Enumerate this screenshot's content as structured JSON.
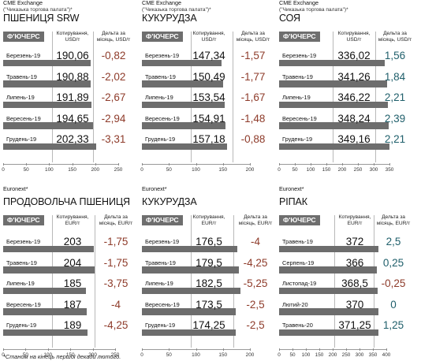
{
  "footnote": "*Станом на кінець першої декади лютого.",
  "labels": {
    "tag": "Ф'ЮЧЕРС"
  },
  "colors": {
    "bar": "#6d6d6d",
    "tag_bg": "#6e6e6e",
    "negative": "#8e3b2a",
    "positive": "#1f5f6b"
  },
  "panels": [
    {
      "exchange": "CME Exchange",
      "exchange_sub": "(\"Чиказька торгова палата\")*",
      "name": "ПШЕНИЦЯ SRW",
      "col_quote": [
        "Котирування,",
        "USD/т"
      ],
      "col_delta": [
        "Дельта за",
        "місяць, USD/т"
      ],
      "axis_max": 250,
      "ticks": [
        0,
        50,
        100,
        150,
        200,
        250
      ],
      "rows": [
        {
          "label": "Березень-19",
          "quote": "190,06",
          "delta": "-0,82",
          "q": 190.06,
          "d": -0.82
        },
        {
          "label": "Травень-19",
          "quote": "190,88",
          "delta": "-2,02",
          "q": 190.88,
          "d": -2.02
        },
        {
          "label": "Липень-19",
          "quote": "191,89",
          "delta": "-2,67",
          "q": 191.89,
          "d": -2.67
        },
        {
          "label": "Вересень-19",
          "quote": "194,65",
          "delta": "-2,94",
          "q": 194.65,
          "d": -2.94
        },
        {
          "label": "Грудень-19",
          "quote": "202,33",
          "delta": "-3,31",
          "q": 202.33,
          "d": -3.31
        }
      ]
    },
    {
      "exchange": "CME Exchange",
      "exchange_sub": "(\"Чиказька торгова палата\")*",
      "name": "КУКУРУДЗА",
      "col_quote": [
        "Котирування,",
        "USD/т"
      ],
      "col_delta": [
        "Дельта за",
        "місяць, USD/т"
      ],
      "axis_max": 200,
      "ticks": [
        0,
        50,
        100,
        150,
        200
      ],
      "rows": [
        {
          "label": "Березень-19",
          "quote": "147,34",
          "delta": "-1,57",
          "q": 147.34,
          "d": -1.57
        },
        {
          "label": "Травень-19",
          "quote": "150,49",
          "delta": "-1,77",
          "q": 150.49,
          "d": -1.77
        },
        {
          "label": "Липень-19",
          "quote": "153,54",
          "delta": "-1,67",
          "q": 153.54,
          "d": -1.67
        },
        {
          "label": "Вересень-19",
          "quote": "154,91",
          "delta": "-1,48",
          "q": 154.91,
          "d": -1.48
        },
        {
          "label": "Грудень-19",
          "quote": "157,18",
          "delta": "-0,88",
          "q": 157.18,
          "d": -0.88
        }
      ]
    },
    {
      "exchange": "CME Exchange",
      "exchange_sub": "(\"Чиказька торгова палата\")*",
      "name": "СОЯ",
      "col_quote": [
        "Котирування,",
        "USD/т"
      ],
      "col_delta": [
        "Дельта за",
        "місяць, USD/т"
      ],
      "axis_max": 350,
      "ticks": [
        0,
        50,
        100,
        150,
        200,
        250,
        300,
        350
      ],
      "rows": [
        {
          "label": "Березень-19",
          "quote": "336,02",
          "delta": "1,56",
          "q": 336.02,
          "d": 1.56
        },
        {
          "label": "Травень-19",
          "quote": "341,26",
          "delta": "1,84",
          "q": 341.26,
          "d": 1.84
        },
        {
          "label": "Липень-19",
          "quote": "346,22",
          "delta": "2,21",
          "q": 346.22,
          "d": 2.21
        },
        {
          "label": "Вересень-19",
          "quote": "348,24",
          "delta": "2,39",
          "q": 348.24,
          "d": 2.39
        },
        {
          "label": "Грудень-19",
          "quote": "349,16",
          "delta": "2,21",
          "q": 349.16,
          "d": 2.21
        }
      ]
    },
    {
      "exchange": "Euronext*",
      "exchange_sub": "",
      "name": "ПРОДОВОЛЬЧА ПШЕНИЦЯ",
      "col_quote": [
        "Котирування,",
        "EUR/т"
      ],
      "col_delta": [
        "Дельта за",
        "місяць, EUR/т"
      ],
      "axis_max": 250,
      "ticks": [
        0,
        50,
        100,
        150,
        200,
        250
      ],
      "rows": [
        {
          "label": "Березень-19",
          "quote": "203",
          "delta": "-1,75",
          "q": 203,
          "d": -1.75
        },
        {
          "label": "Травень-19",
          "quote": "204",
          "delta": "-1,75",
          "q": 204,
          "d": -1.75
        },
        {
          "label": "Липень-19",
          "quote": "185",
          "delta": "-3,75",
          "q": 185,
          "d": -3.75
        },
        {
          "label": "Вересень-19",
          "quote": "187",
          "delta": "-4",
          "q": 187,
          "d": -4
        },
        {
          "label": "Грудень-19",
          "quote": "189",
          "delta": "-4,25",
          "q": 189,
          "d": -4.25
        }
      ]
    },
    {
      "exchange": "Euronext*",
      "exchange_sub": "",
      "name": "КУКУРУДЗА",
      "col_quote": [
        "Котирування,",
        "EUR/т"
      ],
      "col_delta": [
        "Дельта за",
        "місяць, EUR/т"
      ],
      "axis_max": 200,
      "ticks": [
        0,
        50,
        100,
        150,
        200
      ],
      "rows": [
        {
          "label": "Березень-19",
          "quote": "176,5",
          "delta": "-4",
          "q": 176.5,
          "d": -4
        },
        {
          "label": "Травень-19",
          "quote": "179,5",
          "delta": "-4,25",
          "q": 179.5,
          "d": -4.25
        },
        {
          "label": "Липень-19",
          "quote": "182,5",
          "delta": "-5,25",
          "q": 182.5,
          "d": -5.25
        },
        {
          "label": "Вересень-19",
          "quote": "173,5",
          "delta": "-2,5",
          "q": 173.5,
          "d": -2.5
        },
        {
          "label": "Грудень-19",
          "quote": "174,25",
          "delta": "-2,5",
          "q": 174.25,
          "d": -2.5
        }
      ]
    },
    {
      "exchange": "Euronext*",
      "exchange_sub": "",
      "name": "РІПАК",
      "col_quote": [
        "Котирування,",
        "EUR/т"
      ],
      "col_delta": [
        "Дельта за",
        "місяць, EUR/т"
      ],
      "axis_max": 400,
      "ticks": [
        0,
        50,
        100,
        150,
        200,
        250,
        300,
        350,
        400
      ],
      "rows": [
        {
          "label": "Травень-19",
          "quote": "372",
          "delta": "2,5",
          "q": 372,
          "d": 2.5
        },
        {
          "label": "Серпень-19",
          "quote": "366",
          "delta": "0,25",
          "q": 366,
          "d": 0.25
        },
        {
          "label": "Листопад-19",
          "quote": "368,5",
          "delta": "-0,25",
          "q": 368.5,
          "d": -0.25
        },
        {
          "label": "Лютий-20",
          "quote": "370",
          "delta": "0",
          "q": 370,
          "d": 0
        },
        {
          "label": "Травень-20",
          "quote": "371,25",
          "delta": "1,25",
          "q": 371.25,
          "d": 1.25
        }
      ]
    }
  ]
}
